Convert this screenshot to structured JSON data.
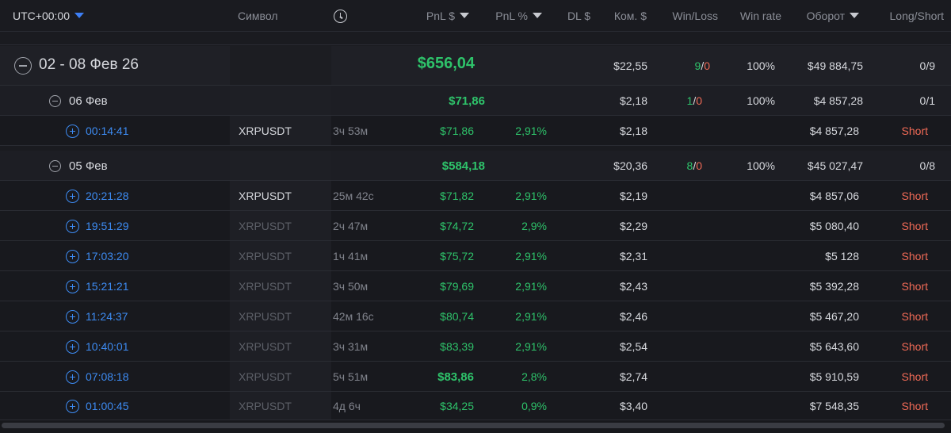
{
  "header": {
    "timezone": "UTC+00:00",
    "symbol": "Символ",
    "pnl_usd": "PnL $",
    "pnl_pct": "PnL %",
    "dl_usd": "DL $",
    "commission": "Ком. $",
    "win_loss": "Win/Loss",
    "win_rate": "Win rate",
    "turnover": "Оборот",
    "long_short": "Long/Short"
  },
  "week": {
    "label": "02 - 08 Фев 26",
    "pnl": "$656,04",
    "commission": "$22,55",
    "wins": "9",
    "sep": "/",
    "losses": "0",
    "win_rate": "100%",
    "turnover": "$49 884,75",
    "long_short": "0/9"
  },
  "days": [
    {
      "label": "06 Фев",
      "pnl": "$71,86",
      "commission": "$2,18",
      "wins": "1",
      "sep": "/",
      "losses": "0",
      "win_rate": "100%",
      "turnover": "$4 857,28",
      "long_short": "0/1"
    },
    {
      "label": "05 Фев",
      "pnl": "$584,18",
      "commission": "$20,36",
      "wins": "8",
      "sep": "/",
      "losses": "0",
      "win_rate": "100%",
      "turnover": "$45 027,47",
      "long_short": "0/8"
    }
  ],
  "trades": [
    {
      "time": "00:14:41",
      "symbol": "XRPUSDT",
      "duration": "3ч 53м",
      "pnl": "$71,86",
      "pnl_pct": "2,91%",
      "commission": "$2,18",
      "turnover": "$4 857,28",
      "side": "Short"
    },
    {
      "time": "20:21:28",
      "symbol": "XRPUSDT",
      "duration": "25м 42с",
      "pnl": "$71,82",
      "pnl_pct": "2,91%",
      "commission": "$2,19",
      "turnover": "$4 857,06",
      "side": "Short"
    },
    {
      "time": "19:51:29",
      "symbol": "XRPUSDT",
      "duration": "2ч 47м",
      "pnl": "$74,72",
      "pnl_pct": "2,9%",
      "commission": "$2,29",
      "turnover": "$5 080,40",
      "side": "Short"
    },
    {
      "time": "17:03:20",
      "symbol": "XRPUSDT",
      "duration": "1ч 41м",
      "pnl": "$75,72",
      "pnl_pct": "2,91%",
      "commission": "$2,31",
      "turnover": "$5 128",
      "side": "Short"
    },
    {
      "time": "15:21:21",
      "symbol": "XRPUSDT",
      "duration": "3ч 50м",
      "pnl": "$79,69",
      "pnl_pct": "2,91%",
      "commission": "$2,43",
      "turnover": "$5 392,28",
      "side": "Short"
    },
    {
      "time": "11:24:37",
      "symbol": "XRPUSDT",
      "duration": "42м 16с",
      "pnl": "$80,74",
      "pnl_pct": "2,91%",
      "commission": "$2,46",
      "turnover": "$5 467,20",
      "side": "Short"
    },
    {
      "time": "10:40:01",
      "symbol": "XRPUSDT",
      "duration": "3ч 31м",
      "pnl": "$83,39",
      "pnl_pct": "2,91%",
      "commission": "$2,54",
      "turnover": "$5 643,60",
      "side": "Short"
    },
    {
      "time": "07:08:18",
      "symbol": "XRPUSDT",
      "duration": "5ч 51м",
      "pnl": "$83,86",
      "pnl_pct": "2,8%",
      "commission": "$2,74",
      "turnover": "$5 910,59",
      "side": "Short"
    },
    {
      "time": "01:00:45",
      "symbol": "XRPUSDT",
      "duration": "4д 6ч",
      "pnl": "$34,25",
      "pnl_pct": "0,9%",
      "commission": "$3,40",
      "turnover": "$7 548,35",
      "side": "Short"
    }
  ]
}
